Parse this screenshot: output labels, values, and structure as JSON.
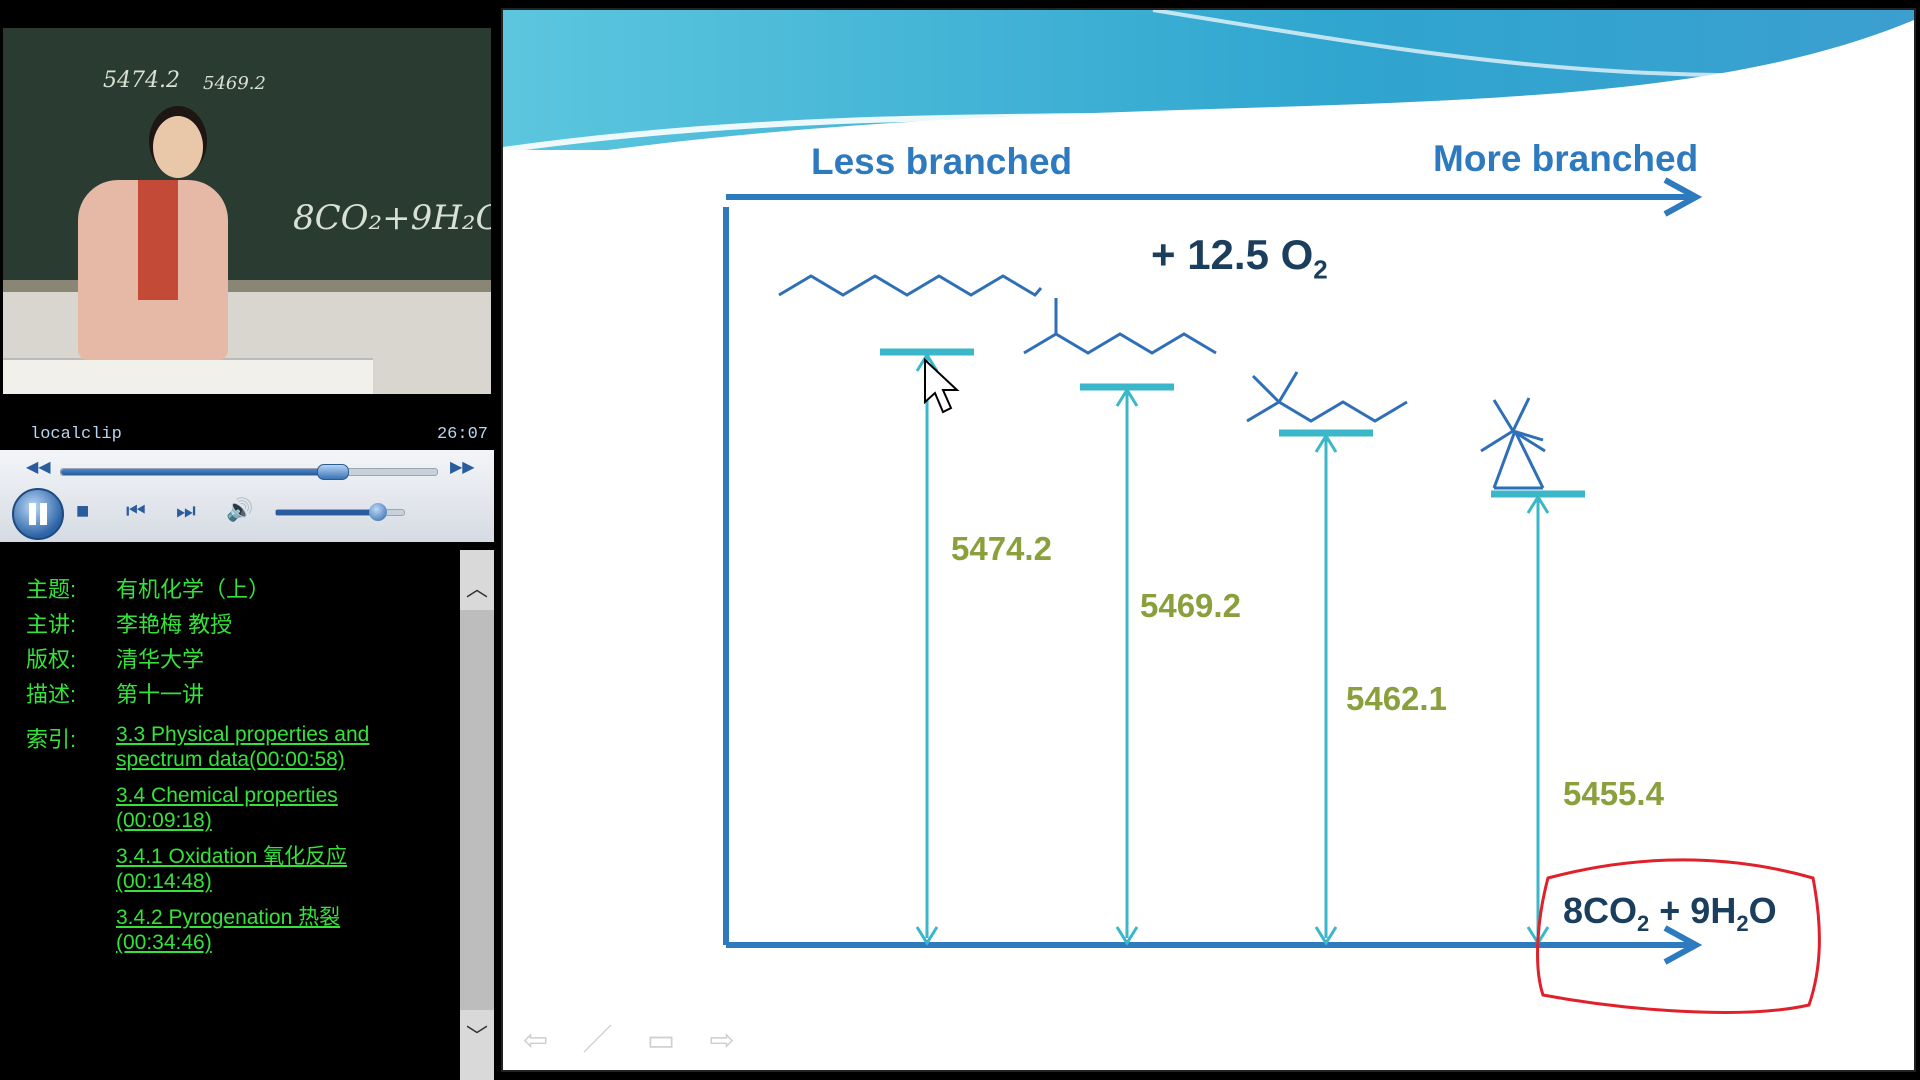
{
  "player": {
    "clip_name": "localclip",
    "clip_time": "26:07",
    "seek_progress": 0.72,
    "volume_level": 0.8
  },
  "video": {
    "chalk_1": "5474.2",
    "chalk_2": "5469.2",
    "chalk_formula": "8CO₂+9H₂O"
  },
  "info": {
    "topic_label": "主题:",
    "topic_value": "有机化学（上）",
    "lecturer_label": "主讲:",
    "lecturer_value": "李艳梅 教授",
    "copyright_label": "版权:",
    "copyright_value": "清华大学",
    "desc_label": "描述:",
    "desc_value": "第十一讲",
    "index_label": "索引:",
    "links": [
      "3.3 Physical properties and spectrum data(00:00:58)",
      "3.4 Chemical properties (00:09:18)",
      "3.4.1 Oxidation 氧化反应 (00:14:48)",
      "3.4.2 Pyrogenation 热裂 (00:34:46)"
    ]
  },
  "slide": {
    "less_branched": "Less branched",
    "more_branched": "More branched",
    "reactant_prefix": "+ 12.5 O",
    "reactant_sub": "2",
    "energies": [
      "5474.2",
      "5469.2",
      "5462.1",
      "5455.4"
    ],
    "product_a": "8CO",
    "product_a_sub": "2",
    "product_b": " + 9H",
    "product_b_sub": "2",
    "product_c": "O"
  },
  "colors": {
    "axis_blue": "#2e7abf",
    "level_teal": "#3bb7c9",
    "energy_green": "#8aa03c",
    "annotation_red": "#e0202a",
    "link_green": "#35e23a"
  }
}
